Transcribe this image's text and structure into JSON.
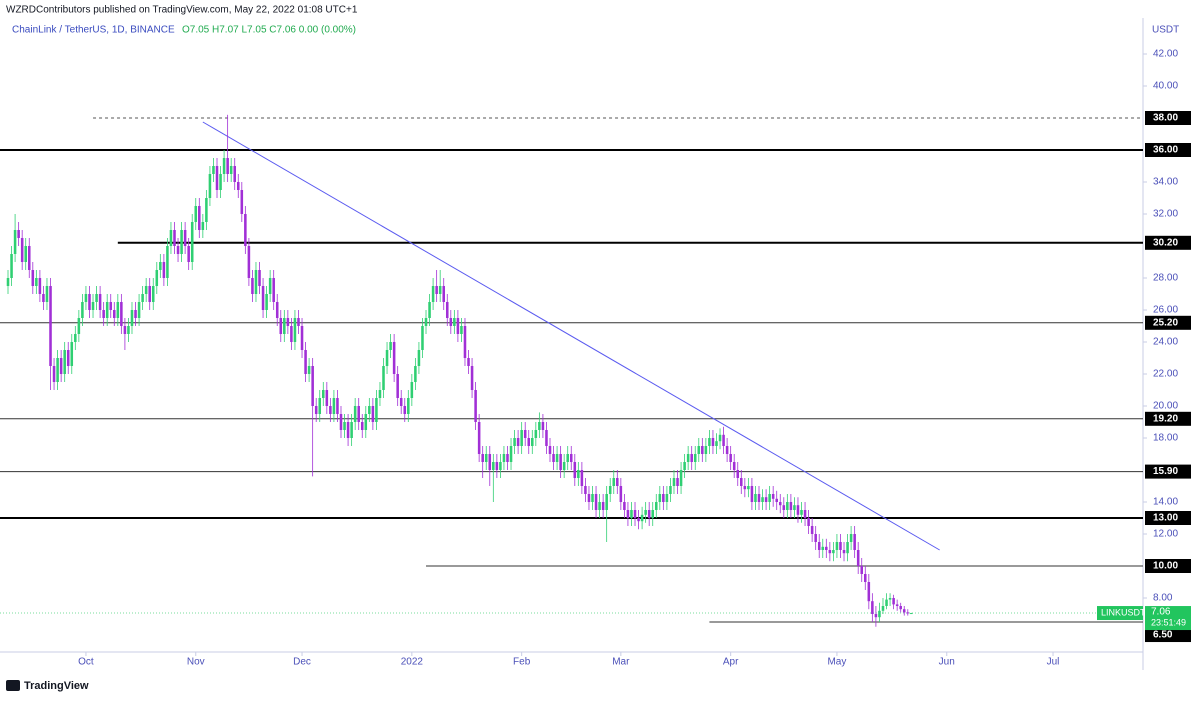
{
  "header": {
    "publisher": "WZRDContributors published on TradingView.com, May 22, 2022 01:08 UTC+1",
    "symbol": "ChainLink / TetherUS, 1D, BINANCE",
    "ohlc": "O7.05  H7.07  L7.05  C7.06  0.00 (0.00%)"
  },
  "footer": {
    "brand": "TradingView"
  },
  "chart_data": {
    "type": "candlestick",
    "currency": "USDT",
    "up_color": "#2fcf72",
    "down_color": "#a12fd6",
    "open": [
      27.5,
      28,
      29.5,
      31,
      30.5,
      29,
      30,
      28.5,
      27.5,
      28,
      27,
      26.5,
      27.5,
      22.5,
      21.5,
      23,
      22,
      23.5,
      22.5,
      24,
      24.5,
      25.5,
      26.5,
      27,
      26,
      26.5,
      27,
      26,
      25.5,
      26.5,
      26,
      25.5,
      26.5,
      25,
      24.5,
      25,
      26,
      25.5,
      26.5,
      27,
      27.5,
      26.5,
      27.5,
      28.5,
      29,
      28,
      30,
      31,
      30,
      29.5,
      31,
      30,
      29,
      31.5,
      32.5,
      31,
      31.5,
      33,
      34.5,
      35,
      33.5,
      34.5,
      35.5,
      34.5,
      35,
      34,
      33.5,
      32,
      30,
      28,
      27,
      28.5,
      27.5,
      26,
      27,
      28,
      26.5,
      25.5,
      24.5,
      25.5,
      25,
      24,
      25.5,
      25,
      23.5,
      22,
      22.5,
      20,
      19.5,
      20.5,
      21,
      20,
      19.5,
      20.5,
      19.5,
      18.5,
      19,
      18,
      19,
      20,
      19,
      18.5,
      19.5,
      20,
      19,
      20.5,
      21,
      22.5,
      23.5,
      24,
      22,
      20.5,
      20,
      19.5,
      20.5,
      21.5,
      22.5,
      23.5,
      25,
      25.5,
      26.5,
      27.5,
      27,
      27.5,
      26.5,
      25.5,
      25,
      25.5,
      24.5,
      25,
      23,
      22.5,
      21,
      19,
      17,
      16.5,
      17,
      16,
      16.5,
      16,
      16.5,
      17,
      16.5,
      17.5,
      18,
      17.5,
      18.5,
      18,
      17.5,
      18,
      18.5,
      19,
      18.5,
      17.5,
      17,
      16.5,
      17,
      16,
      16.5,
      17,
      16.5,
      15.5,
      16,
      15,
      14.5,
      14,
      14.5,
      13.5,
      14,
      13.5,
      14.5,
      15,
      15.5,
      15,
      14,
      13.5,
      13,
      13.5,
      13,
      12.8,
      13.2,
      13.5,
      13,
      13.5,
      14,
      14.5,
      14,
      14.5,
      15,
      15.5,
      15,
      16,
      16.5,
      17,
      16.5,
      17,
      17.5,
      17,
      17.5,
      18,
      17.5,
      17.8,
      18.2,
      17.5,
      17,
      16.5,
      16,
      15.5,
      15,
      14.8,
      15,
      14,
      14.5,
      14,
      14.3,
      14,
      14.5,
      14.2,
      14,
      13.8,
      13.5,
      14,
      13.5,
      13.8,
      13.2,
      13.5,
      13,
      12.5,
      12,
      11.5,
      11,
      11.2,
      11,
      10.8,
      11,
      11.5,
      11,
      10.8,
      11.5,
      12,
      11,
      10,
      9.5,
      9,
      7.8,
      7,
      6.8,
      7.2,
      7.5,
      7.9,
      8,
      7.6,
      7.5,
      7.3,
      7.1,
      7.05
    ],
    "high": [
      28.5,
      30,
      32,
      31.5,
      31,
      30.5,
      30.5,
      29,
      28.5,
      28.5,
      27.5,
      28,
      28,
      23,
      23.5,
      23.5,
      24,
      24,
      24.5,
      25,
      26,
      27,
      27.5,
      27.5,
      27,
      27.5,
      27.5,
      26.5,
      27,
      27,
      26.5,
      27,
      27,
      25.5,
      25.5,
      26.5,
      26.5,
      27,
      27.5,
      28,
      28,
      28,
      29,
      29.5,
      29.5,
      30.5,
      31.5,
      31.5,
      30.5,
      31.5,
      31.5,
      30.5,
      32,
      33,
      33,
      32,
      33.5,
      35,
      35.5,
      35.5,
      35,
      36,
      38.2,
      35.5,
      35.5,
      34.5,
      34,
      32.5,
      30.5,
      28.5,
      29,
      29,
      28,
      27.5,
      28.5,
      28.5,
      27,
      26,
      26,
      26,
      25.5,
      26,
      26,
      25.5,
      24,
      23,
      23,
      20.5,
      21,
      21.5,
      21.5,
      20.5,
      21,
      21,
      20,
      19.5,
      19.5,
      19.5,
      20.5,
      20.5,
      19.5,
      20,
      20.5,
      20.5,
      21,
      21.5,
      23,
      24,
      24.5,
      24.5,
      22.5,
      21,
      20.5,
      21,
      22,
      23,
      24,
      25.5,
      26,
      27,
      28,
      28.5,
      28.5,
      28,
      27,
      26,
      26,
      26,
      25.5,
      25.5,
      23.5,
      23,
      21.5,
      19.5,
      17.5,
      17.5,
      17.5,
      17,
      17,
      17,
      17.5,
      17.5,
      18,
      18.5,
      18.5,
      19,
      19,
      18.5,
      18.5,
      19,
      19.6,
      19.5,
      19,
      18,
      17.5,
      17.5,
      17.5,
      17,
      17.5,
      17.5,
      17,
      16.5,
      16.5,
      15.5,
      15,
      15,
      15,
      14.5,
      14.5,
      15,
      15.5,
      16,
      16,
      15.5,
      14.5,
      14,
      14,
      14,
      13.5,
      13.7,
      14,
      14,
      14,
      14.5,
      15,
      15,
      15,
      15.5,
      16,
      16,
      16.5,
      17,
      17.5,
      17.5,
      17.5,
      18,
      18,
      18,
      18.5,
      18.5,
      18.3,
      18.6,
      18.7,
      18,
      17.5,
      17,
      16.5,
      16,
      15.5,
      15.5,
      15.5,
      15,
      15,
      14.8,
      14.8,
      15,
      15,
      14.7,
      14.5,
      14.3,
      14.5,
      14.5,
      14.3,
      14.3,
      14,
      14,
      13.5,
      13,
      12.5,
      12,
      11.7,
      11.7,
      11.5,
      11.5,
      12,
      12,
      11.5,
      12,
      12.5,
      12.5,
      11.5,
      10.5,
      10,
      9.5,
      8.3,
      7.5,
      7.7,
      8,
      8.3,
      8.3,
      8.2,
      7.9,
      7.7,
      7.5,
      7.3,
      7.07
    ],
    "low": [
      27,
      27.5,
      29,
      30,
      28.5,
      28.5,
      28,
      27,
      27,
      26.5,
      26,
      26,
      21,
      21,
      21,
      21.5,
      21.5,
      22,
      22,
      23.5,
      24,
      25,
      26,
      25.5,
      25.5,
      26,
      25.5,
      25,
      25,
      25.5,
      25,
      25,
      24.5,
      23.5,
      24,
      24.5,
      25,
      25,
      26,
      26.5,
      26,
      26,
      27,
      28,
      27.5,
      27.5,
      29.5,
      29.5,
      29,
      29,
      29.5,
      28.5,
      28.5,
      31,
      30.5,
      30.5,
      31,
      32.5,
      34,
      33,
      33,
      34,
      34,
      34,
      33.5,
      33,
      31.5,
      29.5,
      27.5,
      26.5,
      26.5,
      27,
      25.5,
      25.5,
      26.5,
      26,
      25,
      24,
      24,
      24.5,
      23.5,
      23.5,
      24.5,
      23,
      21.5,
      21.5,
      15.6,
      19,
      19,
      20,
      19.5,
      19,
      19,
      19,
      18,
      18,
      17.5,
      17.5,
      18.5,
      18.5,
      18,
      18,
      19,
      18.5,
      18.5,
      20,
      20.5,
      22,
      23,
      21.5,
      20,
      19.5,
      19,
      19,
      20,
      21,
      22,
      23,
      24.5,
      25,
      26,
      26.5,
      26.5,
      26,
      25,
      24.5,
      24.5,
      24,
      24,
      22.5,
      22,
      20.5,
      18.5,
      16.5,
      15.5,
      16,
      15,
      14,
      15.5,
      15.5,
      16,
      16,
      16,
      17,
      17,
      17,
      17.5,
      17,
      17,
      17.5,
      18,
      18,
      17,
      16.5,
      16,
      16,
      15.5,
      15.5,
      16,
      16,
      15,
      15,
      14.5,
      14,
      13.5,
      13.5,
      13,
      13,
      13,
      11.5,
      14,
      14.5,
      14.5,
      13.5,
      13,
      12.5,
      12.5,
      12.5,
      12.3,
      12.3,
      12.7,
      12.5,
      12.5,
      13,
      13.5,
      13.5,
      13.5,
      14,
      14.5,
      14.5,
      14.5,
      15.5,
      16,
      16,
      16,
      16.5,
      16.5,
      16.5,
      17,
      17,
      17,
      17.3,
      17,
      16.5,
      16,
      15.5,
      15,
      14.5,
      14.3,
      14.3,
      13.5,
      13.5,
      13.5,
      13.5,
      13.5,
      13.5,
      13.7,
      13.5,
      13.3,
      13,
      13,
      13,
      13,
      12.7,
      12.7,
      12.5,
      12,
      11.5,
      11,
      10.5,
      10.5,
      10.5,
      10.3,
      10.3,
      10.5,
      10.5,
      10.3,
      10.3,
      11,
      10.5,
      9.5,
      9,
      8.5,
      7.3,
      6.5,
      6.2,
      6.5,
      7,
      7.3,
      7.5,
      7.3,
      7.2,
      7.1,
      6.9,
      6.9,
      7.05
    ],
    "close": [
      28,
      29.5,
      31,
      30.5,
      29,
      30,
      28.5,
      27.5,
      28,
      27,
      26.5,
      27.5,
      22.5,
      21.5,
      23,
      22,
      23.5,
      22.5,
      24,
      24.5,
      25.5,
      26.5,
      27,
      26,
      26.5,
      27,
      26,
      25.5,
      26.5,
      26,
      25.5,
      26.5,
      25,
      24.5,
      25,
      26,
      25.5,
      26.5,
      27,
      27.5,
      26.5,
      27.5,
      28.5,
      29,
      28,
      30,
      31,
      30,
      29.5,
      31,
      30,
      29,
      31.5,
      32.5,
      31,
      31.5,
      33,
      34.5,
      35,
      33.5,
      34.5,
      35.5,
      34.5,
      35,
      34,
      33.5,
      32,
      30,
      28,
      27,
      28.5,
      27.5,
      26,
      27,
      28,
      26.5,
      25.5,
      24.5,
      25.5,
      25,
      24,
      25.5,
      25,
      23.5,
      22,
      22.5,
      20,
      19.5,
      20.5,
      21,
      20,
      19.5,
      20.5,
      19.5,
      18.5,
      19,
      18,
      19,
      20,
      19,
      18.5,
      19.5,
      20,
      19,
      20.5,
      21,
      22.5,
      23.5,
      24,
      22,
      20.5,
      20,
      19.5,
      20.5,
      21.5,
      22.5,
      23.5,
      25,
      25.5,
      26.5,
      27.5,
      27,
      27.5,
      26.5,
      25.5,
      25,
      25.5,
      24.5,
      25,
      23,
      22.5,
      21,
      19,
      17,
      16.5,
      17,
      16,
      16.5,
      16,
      16.5,
      17,
      16.5,
      17.5,
      18,
      17.5,
      18.5,
      18,
      17.5,
      18,
      18.5,
      19,
      18.5,
      17.5,
      17,
      16.5,
      17,
      16,
      16.5,
      17,
      16.5,
      15.5,
      16,
      15,
      14.5,
      14,
      14.5,
      13.5,
      14,
      13.5,
      14.5,
      15,
      15.5,
      15,
      14,
      13.5,
      13,
      13.5,
      13,
      12.8,
      13.2,
      13.5,
      13,
      13.5,
      14,
      14.5,
      14,
      14.5,
      15,
      15.5,
      15,
      16,
      16.5,
      17,
      16.5,
      17,
      17.5,
      17,
      17.5,
      18,
      17.5,
      17.8,
      18.2,
      17.5,
      17,
      16.5,
      16,
      15.5,
      15,
      14.8,
      15,
      14,
      14.5,
      14,
      14.3,
      14,
      14.5,
      14.2,
      14,
      13.8,
      13.5,
      14,
      13.5,
      13.8,
      13.2,
      13.5,
      13,
      12.5,
      12,
      11.5,
      11,
      11.2,
      11,
      10.8,
      11,
      11.5,
      11,
      10.8,
      11.5,
      12,
      11,
      10,
      9.5,
      9,
      7.8,
      7,
      6.8,
      7.2,
      7.5,
      7.9,
      8,
      7.6,
      7.5,
      7.3,
      7.1,
      7.05,
      7.06
    ],
    "xlim": [
      -2.26,
      320.4
    ],
    "xticks": [
      {
        "value": 22,
        "label": "Oct"
      },
      {
        "value": 53,
        "label": "Nov"
      },
      {
        "value": 83,
        "label": "Dec"
      },
      {
        "value": 114,
        "label": "2022"
      },
      {
        "value": 145,
        "label": "Feb"
      },
      {
        "value": 173,
        "label": "Mar"
      },
      {
        "value": 204,
        "label": "Apr"
      },
      {
        "value": 234,
        "label": "May"
      },
      {
        "value": 265,
        "label": "Jun"
      },
      {
        "value": 295,
        "label": "Jul"
      }
    ],
    "ylim": [
      4.625,
      44.25
    ],
    "yticks": [
      {
        "value": 8,
        "label": "8.00"
      },
      {
        "value": 12,
        "label": "12.00"
      },
      {
        "value": 14,
        "label": "14.00"
      },
      {
        "value": 18,
        "label": "18.00"
      },
      {
        "value": 20,
        "label": "20.00"
      },
      {
        "value": 22,
        "label": "22.00"
      },
      {
        "value": 24,
        "label": "24.00"
      },
      {
        "value": 26,
        "label": "26.00"
      },
      {
        "value": 28,
        "label": "28.00"
      },
      {
        "value": 32,
        "label": "32.00"
      },
      {
        "value": 34,
        "label": "34.00"
      },
      {
        "value": 40,
        "label": "40.00"
      },
      {
        "value": 42,
        "label": "42.00"
      }
    ],
    "levels": [
      {
        "value": 38,
        "label": "38.00",
        "style": "dashed",
        "start": 24
      },
      {
        "value": 36,
        "label": "36.00",
        "style": "thick"
      },
      {
        "value": 30.2,
        "label": "30.20",
        "style": "thick",
        "start": 31
      },
      {
        "value": 25.2,
        "label": "25.20",
        "style": "thin"
      },
      {
        "value": 19.2,
        "label": "19.20",
        "style": "thin"
      },
      {
        "value": 15.9,
        "label": "15.90",
        "style": "thin"
      },
      {
        "value": 13,
        "label": "13.00",
        "style": "thick"
      },
      {
        "value": 10,
        "label": "10.00",
        "style": "thin",
        "start": 118
      },
      {
        "value": 6.5,
        "label": "6.50",
        "style": "thin",
        "start": 198
      }
    ],
    "trendline": {
      "from": [
        55,
        37.75
      ],
      "to": [
        263,
        11.0
      ],
      "color": "#5b5bf0"
    },
    "last_price": {
      "symbol": "LINKUSDT",
      "value": 7.06,
      "countdown": "23:51:49",
      "color": "#22c55e"
    }
  }
}
